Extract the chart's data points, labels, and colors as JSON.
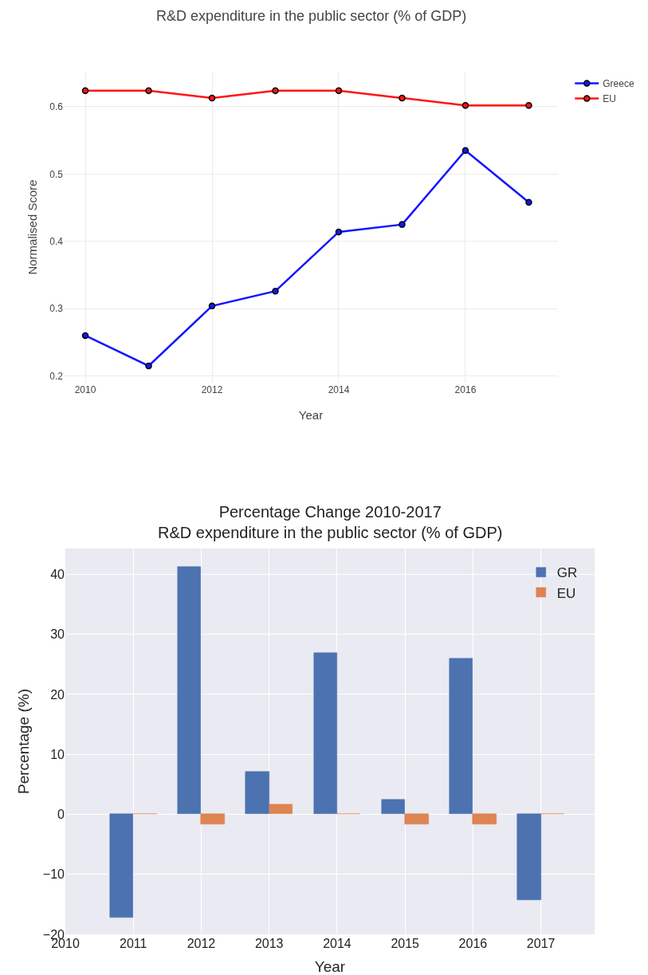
{
  "chart_data": [
    {
      "type": "line",
      "title": "R&D expenditure in the public sector (% of GDP)",
      "xlabel": "Year",
      "ylabel": "Normalised Score",
      "x": [
        2010,
        2011,
        2012,
        2013,
        2014,
        2015,
        2016,
        2017
      ],
      "series": [
        {
          "name": "Greece",
          "color": "#1414ff",
          "values": [
            0.26,
            0.215,
            0.304,
            0.326,
            0.414,
            0.425,
            0.535,
            0.458
          ]
        },
        {
          "name": "EU",
          "color": "#ff1414",
          "values": [
            0.624,
            0.624,
            0.613,
            0.624,
            0.624,
            0.613,
            0.602,
            0.602
          ]
        }
      ],
      "xlim": [
        2009.66,
        2017.46
      ],
      "xticks": [
        2010,
        2012,
        2014,
        2016
      ],
      "ylim": [
        0.19,
        0.652
      ],
      "yticks": [
        0.2,
        0.3,
        0.4,
        0.5,
        0.6
      ],
      "grid": true,
      "legend": "top right",
      "marker": "circle",
      "line_style": "solid"
    },
    {
      "type": "bar",
      "title": "Percentage Change 2010-2017",
      "subtitle": "R&D expenditure in the public sector (% of GDP)",
      "xlabel": "Year",
      "ylabel": "Percentage (%)",
      "x": [
        2011,
        2012,
        2013,
        2014,
        2015,
        2016,
        2017
      ],
      "series": [
        {
          "name": "GR",
          "color": "#4c72b0",
          "values": [
            -17.2,
            41.2,
            7.1,
            26.9,
            2.5,
            26.0,
            -14.3
          ]
        },
        {
          "name": "EU",
          "color": "#dd8452",
          "values": [
            0,
            -1.7,
            1.7,
            0,
            -1.7,
            -1.7,
            0
          ]
        }
      ],
      "xlim": [
        2010,
        2017.79
      ],
      "xticks": [
        2010,
        2011,
        2012,
        2013,
        2014,
        2015,
        2016,
        2017
      ],
      "ylim": [
        -20,
        44.3
      ],
      "yticks": [
        {
          "value": -20,
          "label": "−20"
        },
        {
          "value": -10,
          "label": "−10"
        },
        0,
        10,
        20,
        30,
        40
      ],
      "grid": true,
      "legend": "top right"
    }
  ]
}
